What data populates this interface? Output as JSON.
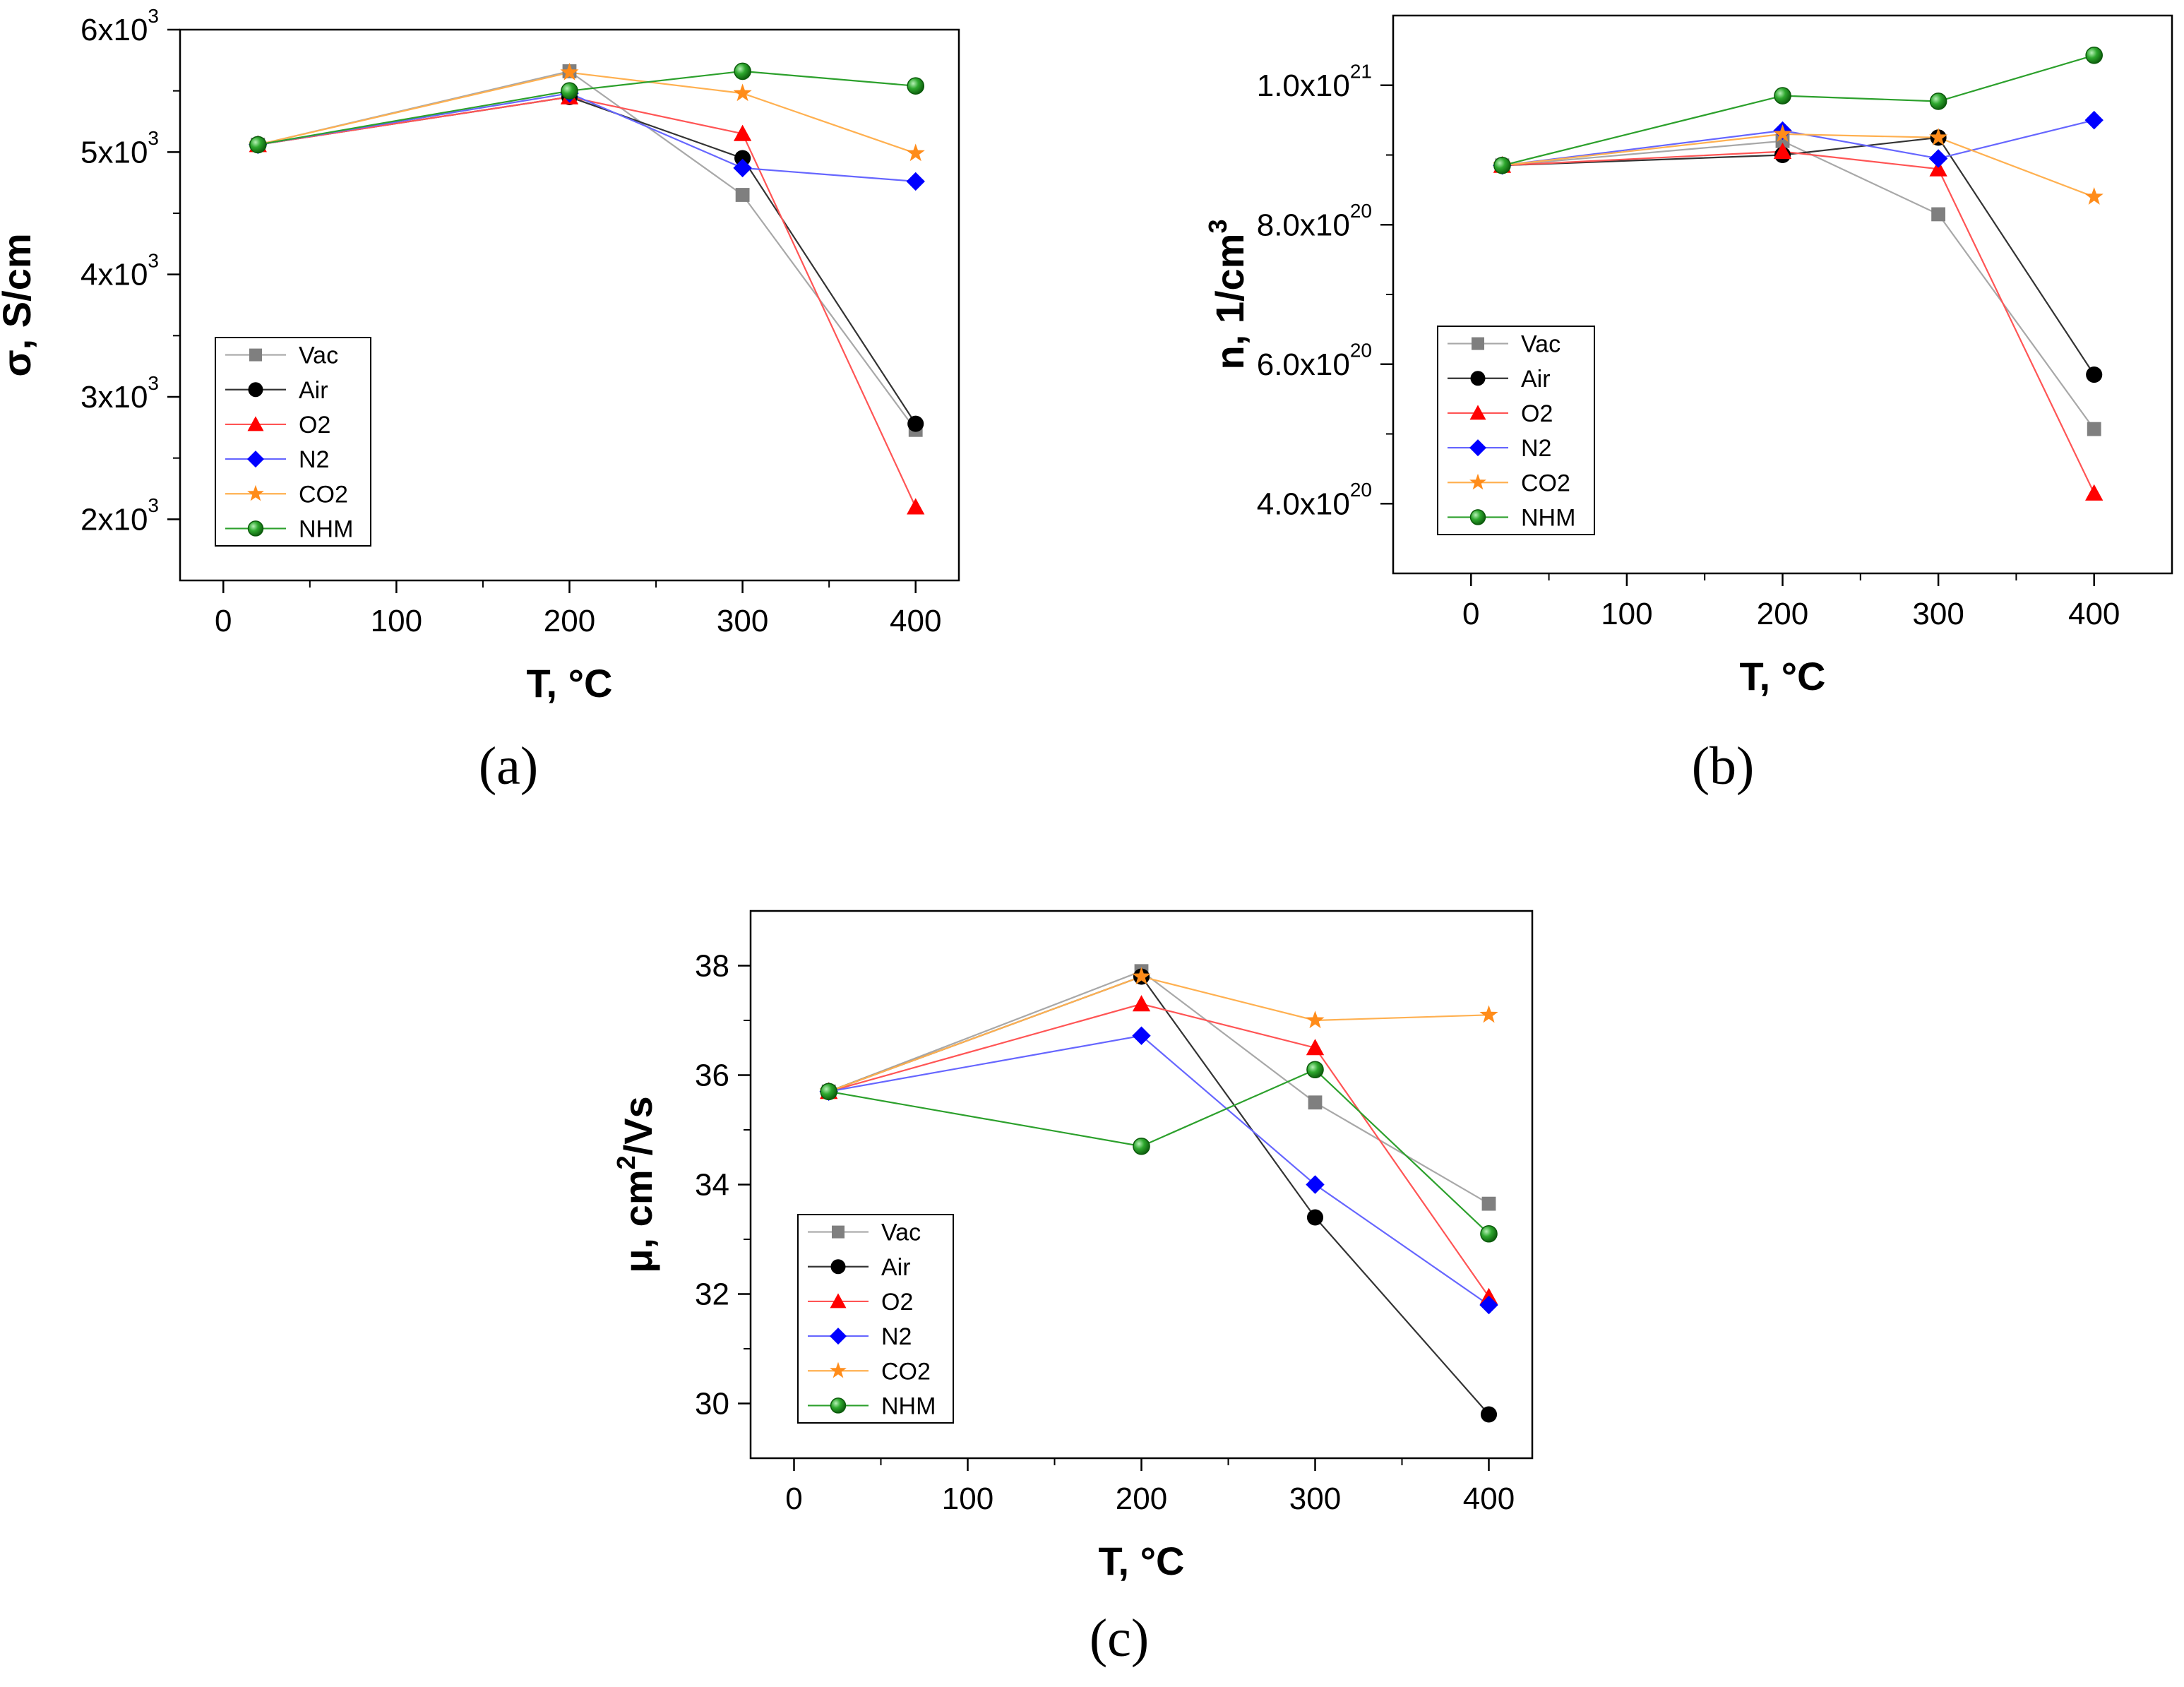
{
  "chart_data": [
    {
      "id": "a",
      "type": "line",
      "caption": "(a)",
      "xlabel": "T, °C",
      "ylabel": "σ, S/cm",
      "xlim": [
        -25,
        425
      ],
      "ylim": [
        1500,
        6000
      ],
      "xticks": [
        0,
        100,
        200,
        300,
        400
      ],
      "yticks": [
        {
          "value": 2000,
          "mantissa": "2x10",
          "exp": "3"
        },
        {
          "value": 3000,
          "mantissa": "3x10",
          "exp": "3"
        },
        {
          "value": 4000,
          "mantissa": "4x10",
          "exp": "3"
        },
        {
          "value": 5000,
          "mantissa": "5x10",
          "exp": "3"
        },
        {
          "value": 6000,
          "mantissa": "6x10",
          "exp": "3"
        }
      ],
      "legend_position": "bottom-left",
      "x": [
        20,
        200,
        300,
        400
      ],
      "series": [
        {
          "name": "Vac",
          "values": [
            5060,
            5660,
            4650,
            2730
          ]
        },
        {
          "name": "Air",
          "values": [
            5060,
            5450,
            4950,
            2780
          ]
        },
        {
          "name": "O2",
          "values": [
            5060,
            5450,
            5150,
            2100
          ]
        },
        {
          "name": "N2",
          "values": [
            5060,
            5480,
            4870,
            4760
          ]
        },
        {
          "name": "CO2",
          "values": [
            5060,
            5650,
            5480,
            4990
          ]
        },
        {
          "name": "NHM",
          "values": [
            5060,
            5500,
            5660,
            5540
          ]
        }
      ]
    },
    {
      "id": "b",
      "type": "line",
      "caption": "(b)",
      "xlabel": "T, °C",
      "ylabel": "n, 1/cm",
      "ylabel_exp": "3",
      "xlim": [
        -50,
        450
      ],
      "ylim": [
        3e+20,
        1.1e+21
      ],
      "xticks": [
        0,
        100,
        200,
        300,
        400
      ],
      "yticks": [
        {
          "value": 4e+20,
          "mantissa": "4.0x10",
          "exp": "20"
        },
        {
          "value": 6e+20,
          "mantissa": "6.0x10",
          "exp": "20"
        },
        {
          "value": 8e+20,
          "mantissa": "8.0x10",
          "exp": "20"
        },
        {
          "value": 1e+21,
          "mantissa": "1.0x10",
          "exp": "21"
        }
      ],
      "legend_position": "bottom-left",
      "x": [
        20,
        200,
        300,
        400
      ],
      "series": [
        {
          "name": "Vac",
          "values": [
            8.85e+20,
            9.2e+20,
            8.15e+20,
            5.07e+20
          ]
        },
        {
          "name": "Air",
          "values": [
            8.85e+20,
            9e+20,
            9.25e+20,
            5.85e+20
          ]
        },
        {
          "name": "O2",
          "values": [
            8.85e+20,
            9.05e+20,
            8.8e+20,
            4.15e+20
          ]
        },
        {
          "name": "N2",
          "values": [
            8.85e+20,
            9.35e+20,
            8.95e+20,
            9.5e+20
          ]
        },
        {
          "name": "CO2",
          "values": [
            8.85e+20,
            9.3e+20,
            9.25e+20,
            8.4e+20
          ]
        },
        {
          "name": "NHM",
          "values": [
            8.85e+20,
            9.85e+20,
            9.77e+20,
            1.043e+21
          ]
        }
      ]
    },
    {
      "id": "c",
      "type": "line",
      "caption": "(c)",
      "xlabel": "T, °C",
      "ylabel": "μ, cm",
      "ylabel_exp": "2",
      "ylabel_tail": "/Vs",
      "xlim": [
        -25,
        425
      ],
      "ylim": [
        29,
        39
      ],
      "xticks": [
        0,
        100,
        200,
        300,
        400
      ],
      "yticks": [
        {
          "value": 30,
          "label": "30"
        },
        {
          "value": 32,
          "label": "32"
        },
        {
          "value": 34,
          "label": "34"
        },
        {
          "value": 36,
          "label": "36"
        },
        {
          "value": 38,
          "label": "38"
        }
      ],
      "legend_position": "bottom-left",
      "x": [
        20,
        200,
        300,
        400
      ],
      "series": [
        {
          "name": "Vac",
          "values": [
            35.7,
            37.9,
            35.5,
            33.65
          ]
        },
        {
          "name": "Air",
          "values": [
            35.7,
            37.8,
            33.4,
            29.8
          ]
        },
        {
          "name": "O2",
          "values": [
            35.7,
            37.3,
            36.5,
            31.95
          ]
        },
        {
          "name": "N2",
          "values": [
            35.7,
            36.72,
            34.0,
            31.8
          ]
        },
        {
          "name": "CO2",
          "values": [
            35.7,
            37.8,
            37.0,
            37.1
          ]
        },
        {
          "name": "NHM",
          "values": [
            35.7,
            34.7,
            36.1,
            33.1
          ]
        }
      ]
    }
  ],
  "series_styles": [
    {
      "name": "Vac",
      "line": "#a8a8a8",
      "fill": "#7f7f7f",
      "marker": "square"
    },
    {
      "name": "Air",
      "line": "#333333",
      "fill": "#000000",
      "marker": "circle"
    },
    {
      "name": "O2",
      "line": "#ff5555",
      "fill": "#ff0000",
      "marker": "triangle"
    },
    {
      "name": "N2",
      "line": "#6666ff",
      "fill": "#0000ff",
      "marker": "diamond"
    },
    {
      "name": "CO2",
      "line": "#ffb050",
      "fill": "#ff8c1a",
      "marker": "star"
    },
    {
      "name": "NHM",
      "line": "#2ca02c",
      "fill": "#1e8c1e",
      "marker": "sphere"
    }
  ]
}
